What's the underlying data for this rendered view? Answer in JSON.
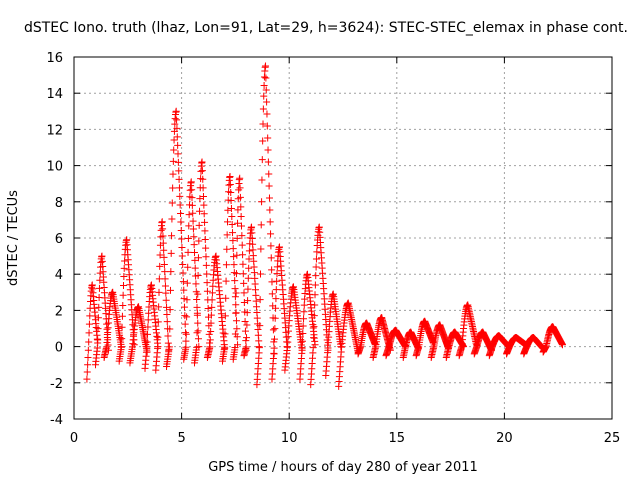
{
  "chart_data": {
    "type": "scatter",
    "title": "dSTEC Iono. truth (lhaz, Lon=91, Lat=29, h=3624): STEC-STEC_elemax in phase cont.",
    "xlabel": "GPS time / hours of day 280 of year 2011",
    "ylabel": "dSTEC  / TECUs",
    "xlim": [
      0,
      25
    ],
    "ylim": [
      -4,
      16
    ],
    "xticks": [
      0,
      5,
      10,
      15,
      20,
      25
    ],
    "yticks": [
      -4,
      -2,
      0,
      2,
      4,
      6,
      8,
      10,
      12,
      14,
      16
    ],
    "grid": true,
    "marker": "plus",
    "color": "#ff0000",
    "series": [
      {
        "arcs": [
          {
            "start": 0.6,
            "end": 1.1,
            "min": -1.8,
            "peak": 3.4,
            "end_value": 0.2
          },
          {
            "start": 1.0,
            "end": 1.6,
            "min": -1.0,
            "peak": 5.0,
            "end_value": -0.2
          },
          {
            "start": 1.4,
            "end": 2.2,
            "min": -0.6,
            "peak": 3.0,
            "end_value": 0.0
          },
          {
            "start": 2.1,
            "end": 2.8,
            "min": -0.8,
            "peak": 5.9,
            "end_value": 0.1
          },
          {
            "start": 2.6,
            "end": 3.4,
            "min": -0.9,
            "peak": 2.2,
            "end_value": -0.3
          },
          {
            "start": 3.3,
            "end": 3.9,
            "min": -1.2,
            "peak": 3.4,
            "end_value": 0.0
          },
          {
            "start": 3.8,
            "end": 4.4,
            "min": -1.3,
            "peak": 6.9,
            "end_value": -0.2
          },
          {
            "start": 4.3,
            "end": 5.2,
            "min": -1.1,
            "peak": 13.0,
            "end_value": 0.3
          },
          {
            "start": 5.1,
            "end": 5.8,
            "min": -0.7,
            "peak": 9.1,
            "end_value": 0.0
          },
          {
            "start": 5.6,
            "end": 6.3,
            "min": -0.9,
            "peak": 10.2,
            "end_value": 0.2
          },
          {
            "start": 6.2,
            "end": 7.0,
            "min": -0.6,
            "peak": 5.0,
            "end_value": -0.1
          },
          {
            "start": 6.9,
            "end": 7.6,
            "min": -0.8,
            "peak": 9.4,
            "end_value": 0.1
          },
          {
            "start": 7.4,
            "end": 8.0,
            "min": -0.7,
            "peak": 9.3,
            "end_value": -0.2
          },
          {
            "start": 7.9,
            "end": 8.6,
            "min": -0.5,
            "peak": 6.6,
            "end_value": 0.0
          },
          {
            "start": 8.5,
            "end": 9.3,
            "min": -2.1,
            "peak": 15.5,
            "end_value": -0.4
          },
          {
            "start": 9.2,
            "end": 9.9,
            "min": -1.8,
            "peak": 5.5,
            "end_value": 0.0
          },
          {
            "start": 9.8,
            "end": 10.6,
            "min": -1.3,
            "peak": 3.3,
            "end_value": -0.2
          },
          {
            "start": 10.5,
            "end": 11.2,
            "min": -1.8,
            "peak": 4.0,
            "end_value": 0.1
          },
          {
            "start": 11.0,
            "end": 11.8,
            "min": -2.1,
            "peak": 6.6,
            "end_value": -0.2
          },
          {
            "start": 11.7,
            "end": 12.4,
            "min": -1.6,
            "peak": 2.9,
            "end_value": 0.0
          },
          {
            "start": 12.3,
            "end": 13.2,
            "min": -2.2,
            "peak": 2.4,
            "end_value": -0.3
          },
          {
            "start": 13.2,
            "end": 14.0,
            "min": -0.4,
            "peak": 1.3,
            "end_value": 0.1
          },
          {
            "start": 13.9,
            "end": 14.7,
            "min": -0.6,
            "peak": 1.6,
            "end_value": -0.2
          },
          {
            "start": 14.5,
            "end": 15.4,
            "min": -0.5,
            "peak": 0.9,
            "end_value": 0.0
          },
          {
            "start": 15.3,
            "end": 16.0,
            "min": -0.6,
            "peak": 0.8,
            "end_value": -0.1
          },
          {
            "start": 15.9,
            "end": 16.7,
            "min": -0.5,
            "peak": 1.4,
            "end_value": 0.2
          },
          {
            "start": 16.6,
            "end": 17.4,
            "min": -0.6,
            "peak": 1.2,
            "end_value": -0.1
          },
          {
            "start": 17.3,
            "end": 18.1,
            "min": -0.6,
            "peak": 0.8,
            "end_value": 0.0
          },
          {
            "start": 17.9,
            "end": 18.7,
            "min": -0.5,
            "peak": 2.3,
            "end_value": 0.1
          },
          {
            "start": 18.6,
            "end": 19.4,
            "min": -0.4,
            "peak": 0.8,
            "end_value": -0.2
          },
          {
            "start": 19.3,
            "end": 20.2,
            "min": -0.5,
            "peak": 0.6,
            "end_value": 0.0
          },
          {
            "start": 20.1,
            "end": 21.0,
            "min": -0.4,
            "peak": 0.5,
            "end_value": 0.1
          },
          {
            "start": 20.9,
            "end": 21.8,
            "min": -0.4,
            "peak": 0.5,
            "end_value": -0.1
          },
          {
            "start": 21.8,
            "end": 22.7,
            "min": -0.3,
            "peak": 1.1,
            "end_value": 0.1
          }
        ]
      }
    ]
  }
}
